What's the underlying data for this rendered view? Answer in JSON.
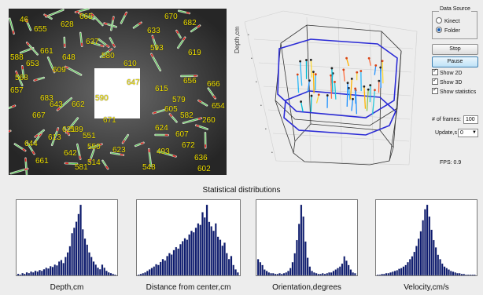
{
  "video": {
    "fish_ids": [
      "46",
      "655",
      "628",
      "665",
      "637",
      "670",
      "682",
      "633",
      "593",
      "619",
      "580",
      "661",
      "648",
      "588",
      "653",
      "609",
      "610",
      "666",
      "656",
      "657",
      "683",
      "615",
      "643",
      "662",
      "667",
      "579",
      "605",
      "582",
      "260",
      "654",
      "590",
      "671",
      "589",
      "624",
      "607",
      "644",
      "613",
      "621",
      "551",
      "550",
      "623",
      "661",
      "642",
      "514",
      "672",
      "581",
      "493",
      "548",
      "636",
      "602",
      "568",
      "647"
    ]
  },
  "plot3d": {
    "ylabel": "Depth,cm"
  },
  "controls": {
    "data_source_title": "Data Source",
    "source_options": [
      {
        "label": "Kinect",
        "selected": false
      },
      {
        "label": "Folder",
        "selected": true
      }
    ],
    "stop_label": "Stop",
    "pause_label": "Pause",
    "checkboxes": [
      {
        "label": "Show 2D",
        "checked": true
      },
      {
        "label": "Show 3D",
        "checked": true
      },
      {
        "label": "Show statistics",
        "checked": true
      }
    ],
    "frames_label": "# of frames:",
    "frames_value": "100",
    "update_label": "Update,s",
    "update_value": "0",
    "fps_text": "FPS: 0.9"
  },
  "stats": {
    "title": "Statistical distributions",
    "histograms": [
      {
        "caption": "Depth,cm",
        "values": [
          2,
          1,
          3,
          2,
          4,
          3,
          5,
          4,
          6,
          5,
          7,
          6,
          8,
          10,
          9,
          12,
          11,
          14,
          13,
          18,
          20,
          16,
          24,
          30,
          38,
          55,
          62,
          70,
          80,
          92,
          60,
          48,
          40,
          30,
          24,
          18,
          14,
          10,
          8,
          14,
          10,
          6,
          4,
          3,
          2,
          1
        ]
      },
      {
        "caption": "Distance from center,cm",
        "values": [
          1,
          2,
          3,
          4,
          6,
          8,
          10,
          12,
          15,
          14,
          18,
          22,
          20,
          26,
          30,
          28,
          34,
          38,
          36,
          42,
          46,
          50,
          48,
          55,
          60,
          58,
          64,
          70,
          68,
          85,
          78,
          95,
          72,
          66,
          60,
          70,
          52,
          48,
          40,
          44,
          30,
          22,
          26,
          14,
          8,
          4
        ]
      },
      {
        "caption": "Orientation,degrees",
        "values": [
          22,
          18,
          14,
          8,
          6,
          4,
          3,
          3,
          2,
          2,
          3,
          2,
          3,
          4,
          6,
          10,
          18,
          30,
          48,
          70,
          96,
          80,
          46,
          24,
          12,
          6,
          4,
          3,
          2,
          2,
          3,
          2,
          3,
          4,
          4,
          6,
          8,
          10,
          12,
          16,
          26,
          20,
          14,
          8,
          4,
          3
        ]
      },
      {
        "caption": "Velocity,cm/s",
        "values": [
          1,
          1,
          2,
          2,
          3,
          3,
          4,
          5,
          6,
          7,
          9,
          10,
          12,
          14,
          18,
          22,
          26,
          32,
          40,
          50,
          60,
          75,
          90,
          96,
          80,
          62,
          48,
          38,
          28,
          22,
          16,
          12,
          10,
          8,
          6,
          5,
          4,
          3,
          3,
          2,
          2,
          1,
          1,
          1,
          1,
          1
        ]
      }
    ]
  }
}
